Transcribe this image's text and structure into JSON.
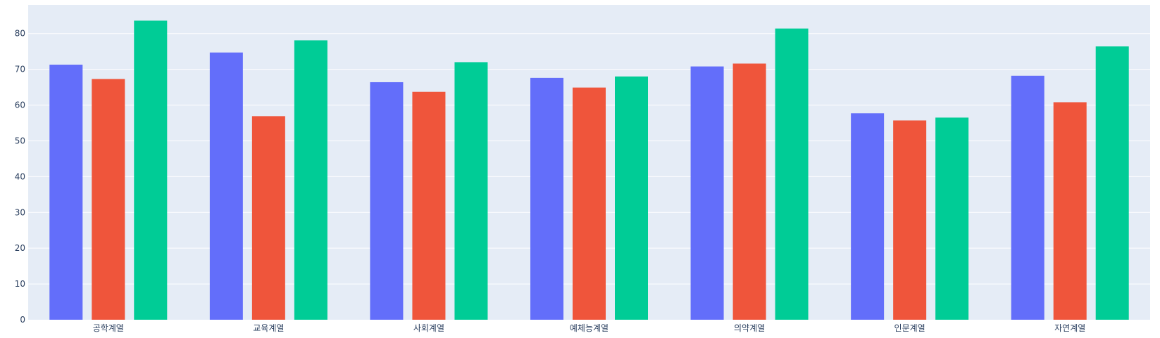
{
  "chart_data": {
    "type": "bar",
    "title": "",
    "xlabel": "",
    "ylabel": "",
    "categories": [
      "공학계열",
      "교육계열",
      "사회계열",
      "예체능계열",
      "의약계열",
      "인문계열",
      "자연계열"
    ],
    "series": [
      {
        "color": "#636efa",
        "values": [
          71.3,
          74.7,
          66.4,
          67.6,
          70.8,
          57.7,
          68.2
        ]
      },
      {
        "color": "#ef553b",
        "values": [
          67.3,
          56.9,
          63.7,
          64.9,
          71.6,
          55.7,
          60.8
        ]
      },
      {
        "color": "#00cc96",
        "values": [
          83.6,
          78.1,
          72.0,
          68.0,
          81.4,
          56.5,
          76.4
        ]
      }
    ],
    "ylim": [
      0,
      88
    ],
    "yticks": [
      0,
      10,
      20,
      30,
      40,
      50,
      60,
      70,
      80
    ],
    "grid": true,
    "legend": "none",
    "plot_bg": "#e5ecf6",
    "grid_color": "#ffffff"
  }
}
